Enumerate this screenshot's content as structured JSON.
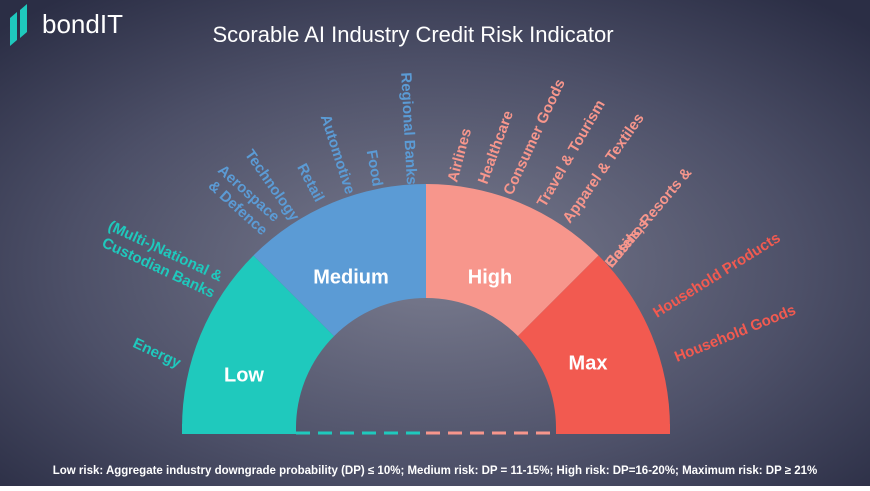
{
  "brand": "bondIT",
  "title": "Scorable AI Industry Credit Risk Indicator",
  "segments": [
    {
      "label": "Low",
      "color": "#1fc9bd",
      "industries": [
        {
          "lines": [
            "Energy"
          ]
        },
        {
          "lines": [
            "(Multi-)National &",
            "Custodian Banks"
          ]
        }
      ]
    },
    {
      "label": "Medium",
      "color": "#5b9bd5",
      "industries": [
        {
          "lines": [
            "Aerospace",
            "& Defence"
          ]
        },
        {
          "lines": [
            "Technology"
          ]
        },
        {
          "lines": [
            "Retail"
          ]
        },
        {
          "lines": [
            "Automotive"
          ]
        },
        {
          "lines": [
            "Food"
          ]
        },
        {
          "lines": [
            "Regional Banks"
          ]
        }
      ]
    },
    {
      "label": "High",
      "color": "#f7968c",
      "industries": [
        {
          "lines": [
            "Airlines"
          ]
        },
        {
          "lines": [
            "Healthcare"
          ]
        },
        {
          "lines": [
            "Consumer Goods"
          ]
        },
        {
          "lines": [
            "Travel & Tourism"
          ]
        },
        {
          "lines": [
            "Apparel & Textiles"
          ]
        },
        {
          "lines": [
            "Hotels, Resorts &",
            "Casinos"
          ]
        }
      ]
    },
    {
      "label": "Max",
      "color": "#f25a50",
      "industries": [
        {
          "lines": [
            "Household Products"
          ]
        },
        {
          "lines": [
            "Household Goods"
          ]
        }
      ]
    }
  ],
  "footnote": "Low risk: Aggregate  industry downgrade probability (DP) ≤ 10%;  Medium risk: DP = 11-15%; High risk: DP=16-20%; Maximum risk: DP ≥ 21%"
}
